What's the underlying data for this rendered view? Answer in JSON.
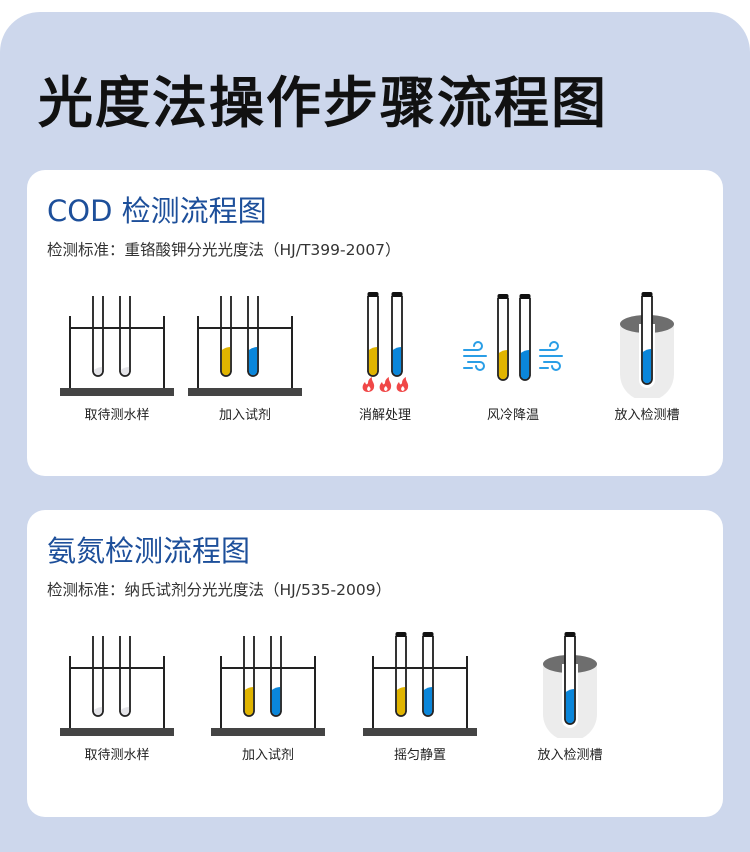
{
  "title": "光度法操作步骤流程图",
  "colors": {
    "background": "#cdd7ec",
    "section_title": "#1d4f9a",
    "yellow": "#e0b400",
    "blue": "#0a86da",
    "flame": "#f04848",
    "wind": "#2a9ee6"
  },
  "sections": [
    {
      "title": "COD 检测流程图",
      "standard": "检测标准：重铬酸钾分光光度法（HJ/T399-2007）",
      "steps": [
        {
          "label": "取待测水样",
          "icon": "rack-sample-icon"
        },
        {
          "label": "加入试剂",
          "icon": "rack-reagent-icon"
        },
        {
          "label": "消解处理",
          "icon": "heating-tubes-icon"
        },
        {
          "label": "风冷降温",
          "icon": "air-cooling-icon"
        },
        {
          "label": "放入检测槽",
          "icon": "detection-cell-icon"
        }
      ]
    },
    {
      "title": "氨氮检测流程图",
      "standard": "检测标准：纳氏试剂分光光度法（HJ/535-2009）",
      "steps": [
        {
          "label": "取待测水样",
          "icon": "rack-sample-icon"
        },
        {
          "label": "加入试剂",
          "icon": "rack-reagent-icon"
        },
        {
          "label": "摇匀静置",
          "icon": "rack-capped-icon"
        },
        {
          "label": "放入检测槽",
          "icon": "detection-cell-icon"
        }
      ]
    }
  ]
}
